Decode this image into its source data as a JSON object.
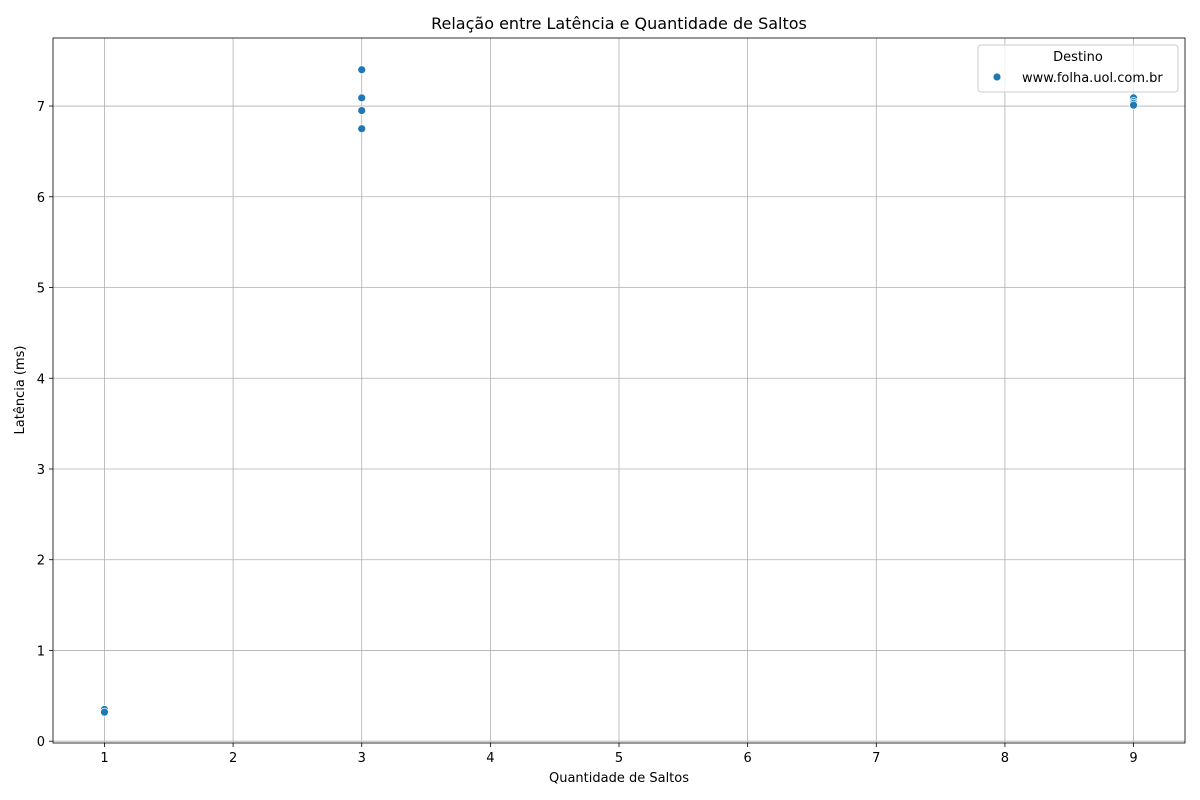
{
  "chart_data": {
    "type": "scatter",
    "title": "Relação entre Latência e Quantidade de Saltos",
    "xlabel": "Quantidade de Saltos",
    "ylabel": "Latência (ms)",
    "xlim": [
      0.6,
      9.4
    ],
    "ylim": [
      -0.02,
      7.75
    ],
    "x_ticks": [
      1,
      2,
      3,
      4,
      5,
      6,
      7,
      8,
      9
    ],
    "y_ticks": [
      0,
      1,
      2,
      3,
      4,
      5,
      6,
      7
    ],
    "grid": true,
    "legend": {
      "title": "Destino",
      "placement": "top-right",
      "entries": [
        "www.folha.uol.com.br"
      ]
    },
    "series": [
      {
        "name": "www.folha.uol.com.br",
        "color": "#1f77b4",
        "points": [
          {
            "x": 1,
            "y": 0.33
          },
          {
            "x": 1,
            "y": 0.35
          },
          {
            "x": 1,
            "y": 0.32
          },
          {
            "x": 3,
            "y": 7.4
          },
          {
            "x": 3,
            "y": 7.09
          },
          {
            "x": 3,
            "y": 6.95
          },
          {
            "x": 3,
            "y": 6.75
          },
          {
            "x": 9,
            "y": 7.09
          },
          {
            "x": 9,
            "y": 7.05
          },
          {
            "x": 9,
            "y": 7.03
          },
          {
            "x": 9,
            "y": 7.01
          }
        ]
      }
    ]
  }
}
